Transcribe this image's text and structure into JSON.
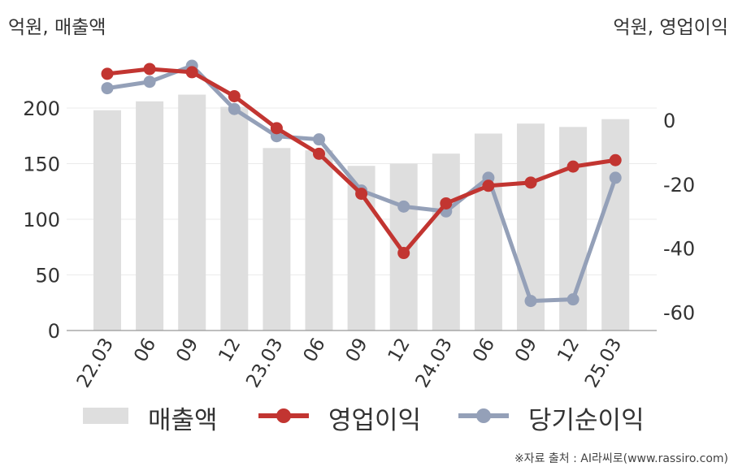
{
  "chart_data": {
    "type": "bar+line",
    "left_axis_unit": "억원, 매출액",
    "right_axis_unit": "억원, 영업이익",
    "categories": [
      "22.03",
      "06",
      "09",
      "12",
      "23.03",
      "06",
      "09",
      "12",
      "24.03",
      "06",
      "09",
      "12",
      "25.03"
    ],
    "left_axis": {
      "ticks": [
        0,
        50,
        100,
        150,
        200
      ],
      "range": [
        0,
        240
      ]
    },
    "right_axis": {
      "ticks": [
        0,
        -20,
        -40,
        -60
      ],
      "range": [
        -65,
        15
      ]
    },
    "series": [
      {
        "name": "매출액",
        "type": "bar",
        "axis": "left",
        "color": "#dedede",
        "values": [
          198,
          206,
          212,
          201,
          164,
          162,
          148,
          150,
          159,
          177,
          186,
          183,
          190
        ]
      },
      {
        "name": "영업이익",
        "type": "line",
        "axis": "right",
        "color": "#c23531",
        "values": [
          14.5,
          16,
          15,
          7.5,
          -2.5,
          -10.5,
          -23,
          -41.5,
          -26,
          -20.5,
          -19.5,
          -14.5,
          -12.5
        ]
      },
      {
        "name": "당기순이익",
        "type": "line",
        "axis": "right",
        "color": "#94a0b8",
        "values": [
          10,
          12,
          17,
          3.5,
          -5,
          -6,
          -22,
          -27,
          -28.5,
          -18,
          -56.5,
          -56,
          -18
        ]
      }
    ],
    "legend_position": "bottom",
    "grid": true
  },
  "source": "※자료 출처 : AI라씨로(www.rassiro.com)"
}
